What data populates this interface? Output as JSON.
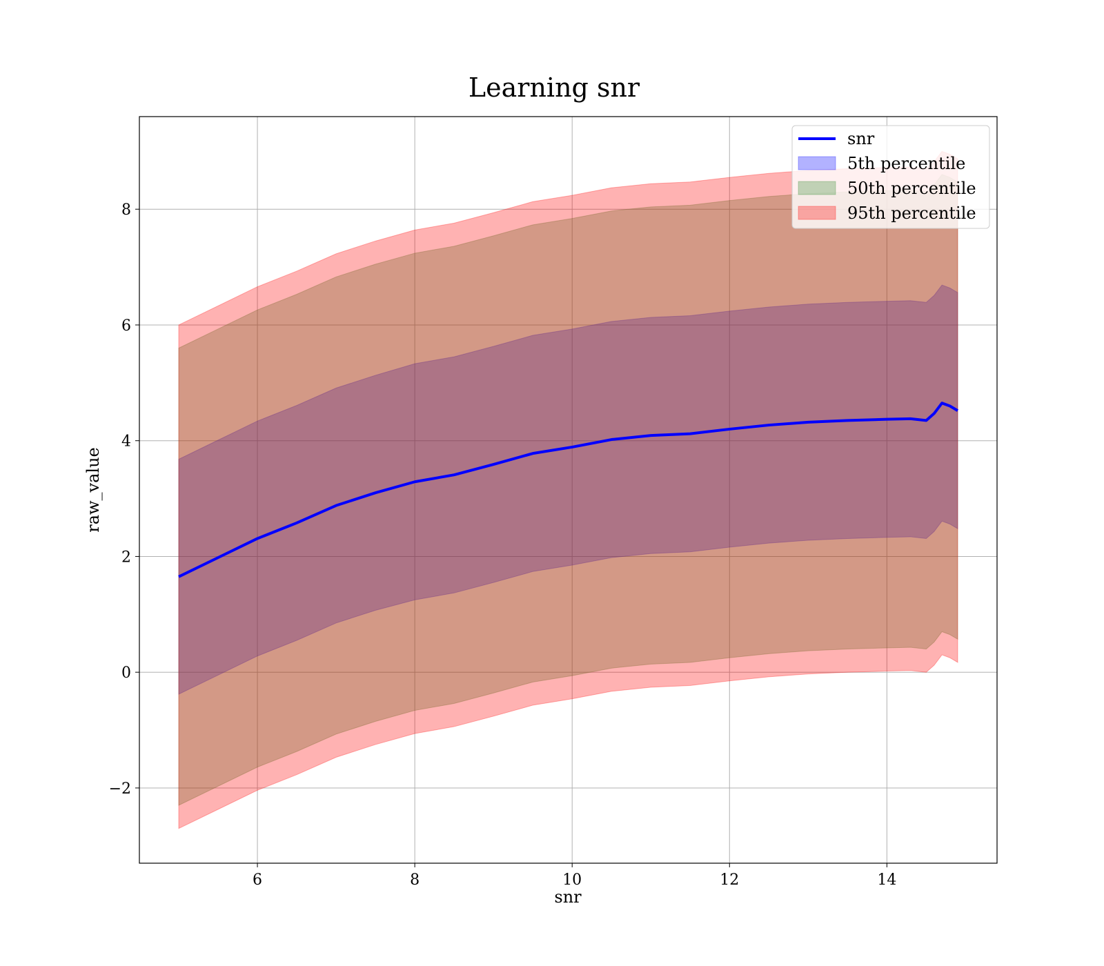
{
  "chart_data": {
    "type": "area",
    "title": "Learning snr",
    "xlabel": "snr",
    "ylabel": "raw_value",
    "xlim": [
      4.5,
      15.4
    ],
    "ylim": [
      -3.3,
      9.6
    ],
    "xticks": [
      6,
      8,
      10,
      12,
      14
    ],
    "yticks": [
      -2,
      0,
      2,
      4,
      6,
      8
    ],
    "xtick_labels": [
      "6",
      "8",
      "10",
      "12",
      "14"
    ],
    "ytick_labels": [
      "−2",
      "0",
      "2",
      "4",
      "6",
      "8"
    ],
    "grid": true,
    "legend_position": "top-right",
    "x": [
      5.0,
      5.5,
      6.0,
      6.5,
      7.0,
      7.5,
      8.0,
      8.5,
      9.0,
      9.5,
      10.0,
      10.5,
      11.0,
      11.5,
      12.0,
      12.5,
      13.0,
      13.5,
      14.0,
      14.3,
      14.5,
      14.6,
      14.7,
      14.8,
      14.9
    ],
    "series": [
      {
        "name": "snr",
        "kind": "line",
        "color": "#0000ff",
        "values": [
          1.65,
          1.98,
          2.31,
          2.58,
          2.88,
          3.1,
          3.29,
          3.41,
          3.59,
          3.78,
          3.89,
          4.02,
          4.09,
          4.12,
          4.2,
          4.27,
          4.32,
          4.35,
          4.37,
          4.38,
          4.35,
          4.47,
          4.65,
          4.6,
          4.52
        ]
      },
      {
        "name": "5th percentile",
        "kind": "band",
        "color": "#0000ff",
        "lower": [
          -0.38,
          -0.05,
          0.28,
          0.55,
          0.85,
          1.07,
          1.25,
          1.37,
          1.55,
          1.74,
          1.85,
          1.98,
          2.05,
          2.08,
          2.16,
          2.23,
          2.28,
          2.31,
          2.33,
          2.34,
          2.31,
          2.43,
          2.61,
          2.56,
          2.48
        ],
        "upper": [
          3.68,
          4.01,
          4.34,
          4.61,
          4.91,
          5.13,
          5.33,
          5.45,
          5.63,
          5.82,
          5.93,
          6.06,
          6.13,
          6.16,
          6.24,
          6.31,
          6.36,
          6.39,
          6.41,
          6.42,
          6.39,
          6.51,
          6.69,
          6.64,
          6.56
        ]
      },
      {
        "name": "50th percentile",
        "kind": "band",
        "color": "#2e8b2e",
        "lower": [
          -2.3,
          -1.97,
          -1.64,
          -1.37,
          -1.07,
          -0.85,
          -0.66,
          -0.54,
          -0.36,
          -0.17,
          -0.06,
          0.07,
          0.14,
          0.17,
          0.25,
          0.32,
          0.37,
          0.4,
          0.42,
          0.43,
          0.4,
          0.52,
          0.7,
          0.65,
          0.57
        ],
        "upper": [
          5.6,
          5.93,
          6.26,
          6.53,
          6.83,
          7.05,
          7.24,
          7.36,
          7.54,
          7.73,
          7.84,
          7.97,
          8.04,
          8.07,
          8.15,
          8.22,
          8.27,
          8.3,
          8.32,
          8.33,
          8.3,
          8.42,
          8.6,
          8.55,
          8.47
        ]
      },
      {
        "name": "95th percentile",
        "kind": "band",
        "color": "#ff0000",
        "lower": [
          -2.7,
          -2.37,
          -2.04,
          -1.77,
          -1.47,
          -1.25,
          -1.06,
          -0.94,
          -0.76,
          -0.57,
          -0.46,
          -0.33,
          -0.26,
          -0.23,
          -0.15,
          -0.08,
          -0.03,
          0.0,
          0.02,
          0.03,
          0.0,
          0.12,
          0.3,
          0.25,
          0.17
        ],
        "upper": [
          6.0,
          6.33,
          6.66,
          6.93,
          7.23,
          7.45,
          7.64,
          7.76,
          7.94,
          8.13,
          8.24,
          8.37,
          8.44,
          8.47,
          8.55,
          8.62,
          8.67,
          8.7,
          8.72,
          8.73,
          8.7,
          8.82,
          9.0,
          8.95,
          8.87
        ]
      }
    ]
  }
}
